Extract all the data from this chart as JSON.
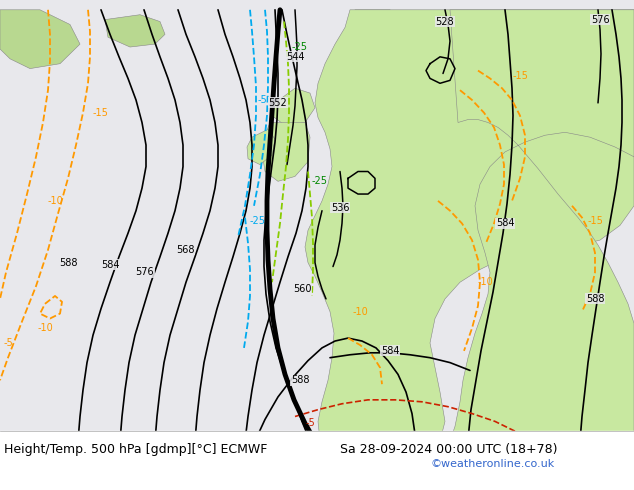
{
  "title_left": "Height/Temp. 500 hPa [gdmp][°C] ECMWF",
  "title_right": "Sa 28-09-2024 00:00 UTC (18+78)",
  "watermark": "©weatheronline.co.uk",
  "bg_ocean": "#e8e8ec",
  "bg_land": "#c8e8a0",
  "bg_land2": "#b8d890",
  "land_border": "#888888",
  "title_fontsize": 9,
  "watermark_color": "#3366cc",
  "fig_width": 6.34,
  "fig_height": 4.9,
  "dpi": 100
}
